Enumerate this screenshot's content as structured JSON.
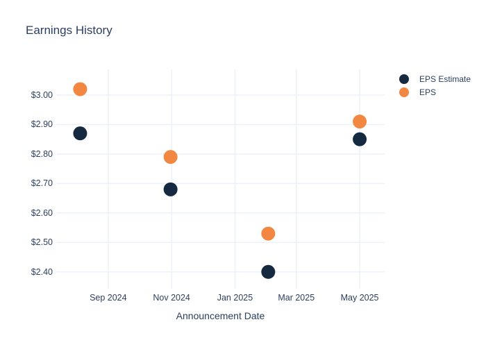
{
  "chart_data": {
    "type": "scatter",
    "title": "Earnings History",
    "xlabel": "Announcement Date",
    "ylabel": "",
    "grid": true,
    "legend_position": "right",
    "colors": {
      "background": "#ffffff",
      "gridline": "#ebf0f8",
      "text": "#2a3f5f"
    },
    "xlim": [
      "2024-07-13",
      "2025-05-25"
    ],
    "ylim": [
      2.343,
      3.087
    ],
    "x_ticks": [
      {
        "date": "2024-09-01",
        "label": "Sep 2024"
      },
      {
        "date": "2024-11-01",
        "label": "Nov 2024"
      },
      {
        "date": "2025-01-01",
        "label": "Jan 2025"
      },
      {
        "date": "2025-03-01",
        "label": "Mar 2025"
      },
      {
        "date": "2025-05-01",
        "label": "May 2025"
      }
    ],
    "y_ticks": [
      {
        "value": 3.0,
        "label": "$3.00"
      },
      {
        "value": 2.9,
        "label": "$2.90"
      },
      {
        "value": 2.8,
        "label": "$2.80"
      },
      {
        "value": 2.7,
        "label": "$2.70"
      },
      {
        "value": 2.6,
        "label": "$2.60"
      },
      {
        "value": 2.5,
        "label": "$2.50"
      },
      {
        "value": 2.4,
        "label": "$2.40"
      }
    ],
    "marker_radius_px": 10,
    "series": [
      {
        "name": "EPS Estimate",
        "color": "#152941",
        "points": [
          {
            "date": "2024-08-05",
            "value": 2.87
          },
          {
            "date": "2024-10-31",
            "value": 2.68
          },
          {
            "date": "2025-02-02",
            "value": 2.4
          },
          {
            "date": "2025-05-01",
            "value": 2.85
          }
        ]
      },
      {
        "name": "EPS",
        "color": "#f28742",
        "points": [
          {
            "date": "2024-08-05",
            "value": 3.02
          },
          {
            "date": "2024-10-31",
            "value": 2.79
          },
          {
            "date": "2025-02-02",
            "value": 2.53
          },
          {
            "date": "2025-05-01",
            "value": 2.91
          }
        ]
      }
    ]
  }
}
